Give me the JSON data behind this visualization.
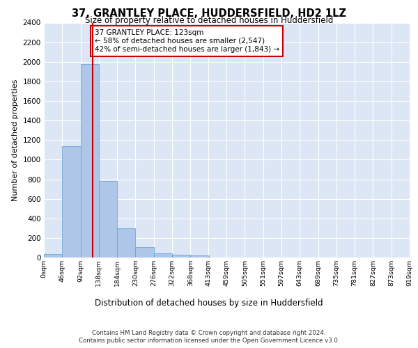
{
  "title1": "37, GRANTLEY PLACE, HUDDERSFIELD, HD2 1LZ",
  "title2": "Size of property relative to detached houses in Huddersfield",
  "xlabel": "Distribution of detached houses by size in Huddersfield",
  "ylabel": "Number of detached properties",
  "annotation_title": "37 GRANTLEY PLACE: 123sqm",
  "annotation_line1": "← 58% of detached houses are smaller (2,547)",
  "annotation_line2": "42% of semi-detached houses are larger (1,843) →",
  "property_size_sqm": 123,
  "bin_edges": [
    0,
    46,
    92,
    138,
    184,
    230,
    276,
    322,
    368,
    413,
    459,
    505,
    551,
    597,
    643,
    689,
    735,
    781,
    827,
    873,
    919
  ],
  "bar_heights": [
    35,
    1140,
    1975,
    780,
    300,
    105,
    45,
    30,
    20,
    0,
    0,
    0,
    0,
    0,
    0,
    0,
    0,
    0,
    0,
    0
  ],
  "bar_color": "#aec6e8",
  "bar_edge_color": "#5a9fd4",
  "vline_color": "#cc0000",
  "vline_x": 123,
  "annotation_box_color": "#cc0000",
  "background_color": "#dce6f5",
  "ylim": [
    0,
    2400
  ],
  "yticks": [
    0,
    200,
    400,
    600,
    800,
    1000,
    1200,
    1400,
    1600,
    1800,
    2000,
    2200,
    2400
  ],
  "footer_line1": "Contains HM Land Registry data © Crown copyright and database right 2024.",
  "footer_line2": "Contains public sector information licensed under the Open Government Licence v3.0."
}
